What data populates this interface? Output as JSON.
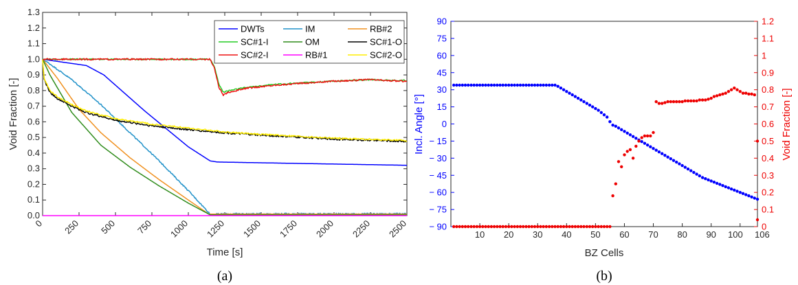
{
  "chart_data": [
    {
      "type": "line",
      "panel_label": "(a)",
      "xlabel": "Time [s]",
      "ylabel": "Void Fraction [-]",
      "xlim": [
        0,
        2500
      ],
      "ylim": [
        0,
        1.3
      ],
      "xticks": [
        0,
        250,
        500,
        750,
        1000,
        1250,
        1500,
        1750,
        2000,
        2250,
        2500
      ],
      "yticks": [
        0,
        0.1,
        0.2,
        0.3,
        0.4,
        0.5,
        0.6,
        0.7,
        0.8,
        0.9,
        1.0,
        1.1,
        1.2,
        1.3
      ],
      "legend_position": "top-right",
      "grid": false,
      "series": [
        {
          "name": "DWTs",
          "color": "#0000ff",
          "noise": 0,
          "x": [
            0,
            300,
            420,
            700,
            1000,
            1150,
            1200,
            1500,
            2000,
            2500
          ],
          "y": [
            1.0,
            0.96,
            0.9,
            0.67,
            0.44,
            0.35,
            0.343,
            0.338,
            0.33,
            0.322
          ]
        },
        {
          "name": "IM",
          "color": "#1e90c8",
          "noise": 0.004,
          "x": [
            0,
            50,
            200,
            400,
            600,
            800,
            1000,
            1150,
            1300,
            1600,
            2000,
            2500
          ],
          "y": [
            1.0,
            0.97,
            0.87,
            0.71,
            0.53,
            0.35,
            0.16,
            0.01,
            0.012,
            0.012,
            0.012,
            0.012
          ]
        },
        {
          "name": "RB#2",
          "color": "#f0901e",
          "noise": 0,
          "x": [
            0,
            100,
            250,
            400,
            600,
            800,
            1000,
            1140,
            1300,
            1600,
            2000,
            2500
          ],
          "y": [
            1.0,
            0.88,
            0.68,
            0.53,
            0.37,
            0.23,
            0.1,
            0.01,
            0.01,
            0.01,
            0.01,
            0.01
          ]
        },
        {
          "name": "SC#1-I",
          "color": "#22cc22",
          "noise": 0.004,
          "x": [
            0,
            1150,
            1180,
            1210,
            1240,
            1280,
            1400,
            1600,
            1800,
            2000,
            2250,
            2400,
            2500
          ],
          "y": [
            1.0,
            1.0,
            0.95,
            0.84,
            0.79,
            0.8,
            0.82,
            0.84,
            0.85,
            0.86,
            0.87,
            0.865,
            0.865
          ]
        },
        {
          "name": "OM",
          "color": "#2e8b1a",
          "noise": 0,
          "x": [
            0,
            50,
            200,
            400,
            600,
            800,
            1000,
            1150,
            1300,
            1600,
            2000,
            2500
          ],
          "y": [
            1.0,
            0.9,
            0.66,
            0.45,
            0.31,
            0.19,
            0.08,
            0.005,
            0.005,
            0.005,
            0.005,
            0.005
          ]
        },
        {
          "name": "SC#1-O",
          "color": "#000000",
          "noise": 0.006,
          "x": [
            0,
            10,
            50,
            100,
            200,
            300,
            500,
            750,
            1000,
            1250,
            1500,
            2000,
            2500
          ],
          "y": [
            1.0,
            0.87,
            0.79,
            0.75,
            0.7,
            0.66,
            0.61,
            0.575,
            0.55,
            0.53,
            0.515,
            0.49,
            0.475
          ]
        },
        {
          "name": "SC#2-I",
          "color": "#ee1111",
          "noise": 0.005,
          "x": [
            0,
            1150,
            1180,
            1210,
            1240,
            1280,
            1400,
            1600,
            1800,
            2000,
            2250,
            2400,
            2500
          ],
          "y": [
            1.0,
            1.0,
            0.94,
            0.82,
            0.77,
            0.79,
            0.815,
            0.835,
            0.848,
            0.86,
            0.87,
            0.862,
            0.86
          ]
        },
        {
          "name": "RB#1",
          "color": "#ff00ff",
          "noise": 0,
          "x": [
            0,
            1150,
            2500
          ],
          "y": [
            0.0,
            0.0,
            0.0
          ]
        },
        {
          "name": "SC#2-O",
          "color": "#ffee00",
          "noise": 0.005,
          "x": [
            0,
            10,
            50,
            100,
            200,
            300,
            500,
            750,
            1000,
            1250,
            1500,
            2000,
            2500
          ],
          "y": [
            1.0,
            0.88,
            0.8,
            0.76,
            0.71,
            0.67,
            0.62,
            0.585,
            0.56,
            0.535,
            0.52,
            0.495,
            0.48
          ]
        }
      ]
    },
    {
      "type": "scatter",
      "panel_label": "(b)",
      "xlabel": "BZ Cells",
      "ylabel_left": "Incl. Angle [°]",
      "ylabel_right": "Void Fraction [-]",
      "xlim": [
        0,
        106
      ],
      "ylim_left": [
        -90,
        90
      ],
      "ylim_right": [
        0,
        1.2
      ],
      "xticks": [
        "10",
        "20",
        "30",
        "40",
        "50",
        "60",
        "70",
        "80",
        "90",
        "100",
        "106"
      ],
      "yticks_left": [
        "90",
        "75",
        "60",
        "45",
        "30",
        "15",
        "0",
        "− 15",
        "− 30",
        "− 45",
        "− 60",
        "− 75",
        "− 90"
      ],
      "yticks_right": [
        "1.2",
        "1.1",
        "1",
        "0.9",
        "0.8",
        "0.7",
        "0.6",
        "0.5",
        "0.4",
        "0.3",
        "0.2",
        "0.1",
        "0"
      ],
      "left_color": "#0000ff",
      "right_color": "#ee0000",
      "grid": false,
      "series": [
        {
          "name": "Incl. Angle",
          "axis": "left",
          "color": "#0000ff",
          "x": [
            1,
            2,
            3,
            4,
            5,
            6,
            7,
            8,
            9,
            10,
            11,
            12,
            13,
            14,
            15,
            16,
            17,
            18,
            19,
            20,
            21,
            22,
            23,
            24,
            25,
            26,
            27,
            28,
            29,
            30,
            31,
            32,
            33,
            34,
            35,
            36,
            37,
            38,
            39,
            40,
            41,
            42,
            43,
            44,
            45,
            46,
            47,
            48,
            49,
            50,
            51,
            52,
            53,
            54,
            55,
            56,
            57,
            58,
            59,
            60,
            61,
            62,
            63,
            64,
            65,
            66,
            67,
            68,
            69,
            70,
            71,
            72,
            73,
            74,
            75,
            76,
            77,
            78,
            79,
            80,
            81,
            82,
            83,
            84,
            85,
            86,
            87,
            88,
            89,
            90,
            91,
            92,
            93,
            94,
            95,
            96,
            97,
            98,
            99,
            100,
            101,
            102,
            103,
            104,
            105,
            106
          ],
          "y": [
            34,
            34,
            34,
            34,
            34,
            34,
            34,
            34,
            34,
            34,
            34,
            34,
            34,
            34,
            34,
            34,
            34,
            34,
            34,
            34,
            34,
            34,
            34,
            34,
            34,
            34,
            34,
            34,
            34,
            34,
            34,
            34,
            34,
            34,
            34,
            34,
            33,
            31.5,
            30,
            28.5,
            27,
            25.5,
            24,
            22.5,
            21,
            19.5,
            18,
            16.5,
            15,
            13.5,
            12,
            10,
            8,
            6,
            2,
            -1,
            -2,
            -3.5,
            -5,
            -6.5,
            -8,
            -9.5,
            -11,
            -12.5,
            -14,
            -15.5,
            -17,
            -18.5,
            -20,
            -21.5,
            -23,
            -24.5,
            -26,
            -27.5,
            -29,
            -30.5,
            -32,
            -33.5,
            -35,
            -36.5,
            -38,
            -39.5,
            -41,
            -42.5,
            -44,
            -45.5,
            -47,
            -48,
            -49,
            -50,
            -51,
            -52,
            -53,
            -54,
            -55,
            -56,
            -57,
            -58,
            -59,
            -60,
            -61,
            -62,
            -63,
            -64,
            -65,
            -66
          ]
        },
        {
          "name": "Void Fraction",
          "axis": "right",
          "color": "#ee0000",
          "x": [
            1,
            2,
            3,
            4,
            5,
            6,
            7,
            8,
            9,
            10,
            11,
            12,
            13,
            14,
            15,
            16,
            17,
            18,
            19,
            20,
            21,
            22,
            23,
            24,
            25,
            26,
            27,
            28,
            29,
            30,
            31,
            32,
            33,
            34,
            35,
            36,
            37,
            38,
            39,
            40,
            41,
            42,
            43,
            44,
            45,
            46,
            47,
            48,
            49,
            50,
            51,
            52,
            53,
            54,
            55,
            56,
            57,
            58,
            59,
            60,
            61,
            62,
            63,
            64,
            65,
            66,
            67,
            68,
            69,
            70,
            71,
            72,
            73,
            74,
            75,
            76,
            77,
            78,
            79,
            80,
            81,
            82,
            83,
            84,
            85,
            86,
            87,
            88,
            89,
            90,
            91,
            92,
            93,
            94,
            95,
            96,
            97,
            98,
            99,
            100,
            101,
            102,
            103,
            104,
            105,
            106,
            106
          ],
          "y": [
            0,
            0,
            0,
            0,
            0,
            0,
            0,
            0,
            0,
            0,
            0,
            0,
            0,
            0,
            0,
            0,
            0,
            0,
            0,
            0,
            0,
            0,
            0,
            0,
            0,
            0,
            0,
            0,
            0,
            0,
            0,
            0,
            0,
            0,
            0,
            0,
            0,
            0,
            0,
            0,
            0,
            0,
            0,
            0,
            0,
            0,
            0,
            0,
            0,
            0,
            0,
            0,
            0,
            0,
            0,
            0.18,
            0.25,
            0.38,
            0.35,
            0.42,
            0.44,
            0.45,
            0.4,
            0.47,
            0.5,
            0.52,
            0.53,
            0.53,
            0.53,
            0.55,
            0.73,
            0.72,
            0.72,
            0.725,
            0.73,
            0.73,
            0.73,
            0.73,
            0.73,
            0.73,
            0.735,
            0.735,
            0.735,
            0.735,
            0.735,
            0.74,
            0.74,
            0.74,
            0.745,
            0.75,
            0.76,
            0.765,
            0.77,
            0.775,
            0.78,
            0.79,
            0.8,
            0.81,
            0.8,
            0.79,
            0.78,
            0.78,
            0.775,
            0.775,
            0.77,
            0.5,
            0.04
          ]
        }
      ]
    }
  ]
}
